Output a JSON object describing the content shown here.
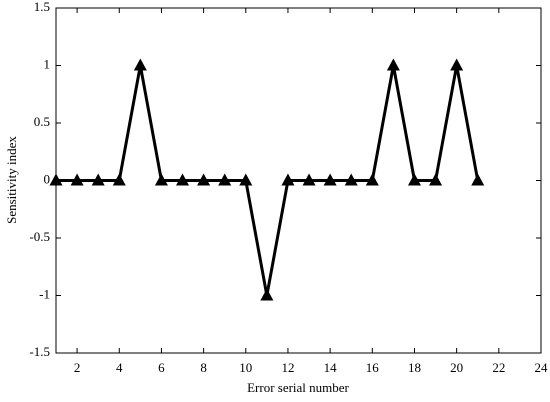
{
  "chart_data": {
    "type": "line",
    "xlabel": "Error serial number",
    "ylabel": "Sensitivity index",
    "x": [
      1,
      2,
      3,
      4,
      5,
      6,
      7,
      8,
      9,
      10,
      11,
      12,
      13,
      14,
      15,
      16,
      17,
      18,
      19,
      20,
      21
    ],
    "series": [
      {
        "color": "#000000",
        "marker": "triangle",
        "values": [
          0,
          0,
          0,
          0,
          1,
          0,
          0,
          0,
          0,
          0,
          -1,
          0,
          0,
          0,
          0,
          0,
          1,
          0,
          0,
          1,
          0
        ]
      }
    ],
    "xlim": [
      1,
      24
    ],
    "xticks": [
      2,
      4,
      6,
      8,
      10,
      12,
      14,
      16,
      18,
      20,
      22,
      24
    ],
    "ylim": [
      -1.5,
      1.5
    ],
    "yticks": [
      -1.5,
      -1,
      -0.5,
      0,
      0.5,
      1,
      1.5
    ],
    "grid": false
  }
}
